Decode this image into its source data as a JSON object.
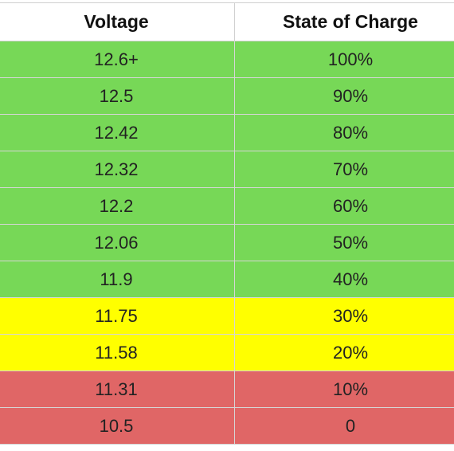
{
  "table": {
    "headers": [
      "Voltage",
      "State of Charge"
    ],
    "colors": {
      "green": "#77d857",
      "yellow": "#ffff00",
      "red": "#e06666"
    },
    "rows": [
      {
        "voltage": "12.6+",
        "charge": "100%",
        "level": "green"
      },
      {
        "voltage": "12.5",
        "charge": "90%",
        "level": "green"
      },
      {
        "voltage": "12.42",
        "charge": "80%",
        "level": "green"
      },
      {
        "voltage": "12.32",
        "charge": "70%",
        "level": "green"
      },
      {
        "voltage": "12.2",
        "charge": "60%",
        "level": "green"
      },
      {
        "voltage": "12.06",
        "charge": "50%",
        "level": "green"
      },
      {
        "voltage": "11.9",
        "charge": "40%",
        "level": "green"
      },
      {
        "voltage": "11.75",
        "charge": "30%",
        "level": "yellow"
      },
      {
        "voltage": "11.58",
        "charge": "20%",
        "level": "yellow"
      },
      {
        "voltage": "11.31",
        "charge": "10%",
        "level": "red"
      },
      {
        "voltage": "10.5",
        "charge": "0",
        "level": "red"
      }
    ]
  }
}
